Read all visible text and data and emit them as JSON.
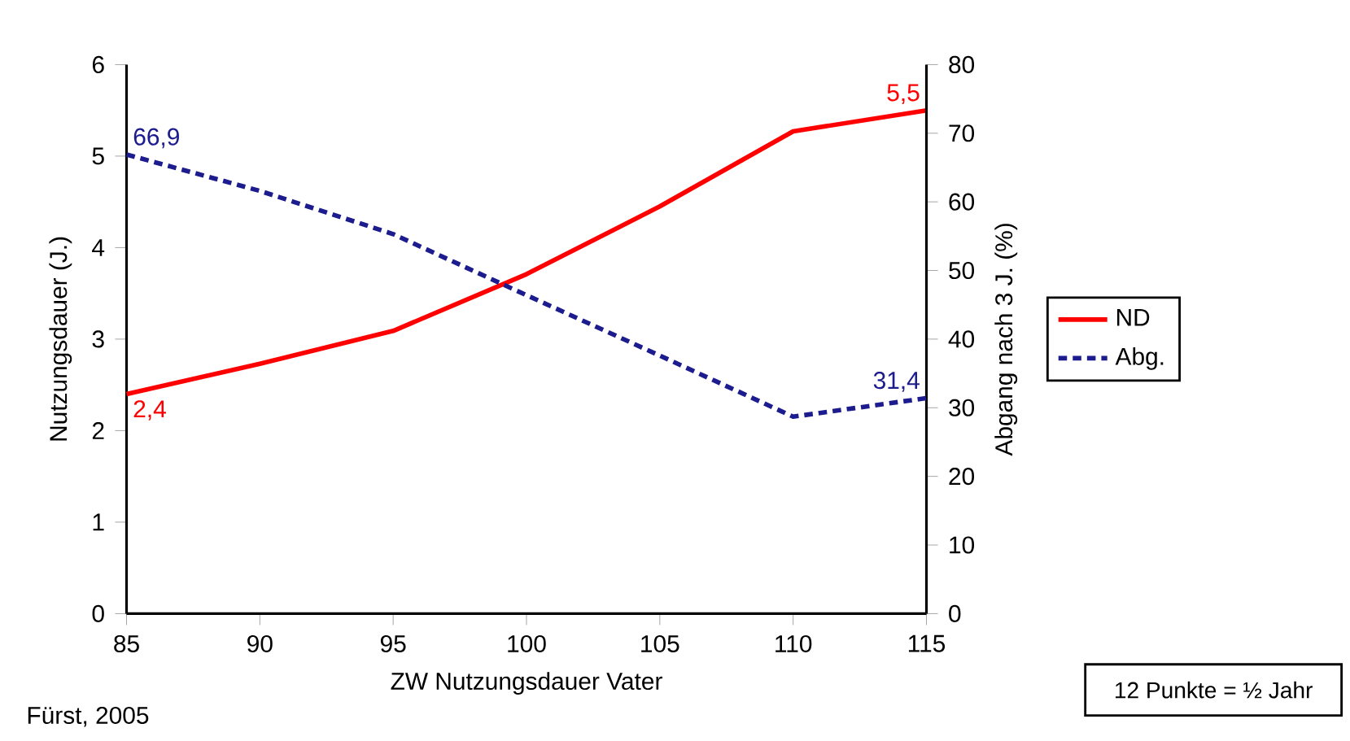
{
  "chart_data": {
    "type": "line",
    "xlabel": "ZW Nutzungsdauer Vater",
    "ylabel": "Nutzungsdauer (J.)",
    "y2label": "Abgang nach 3 J. (%)",
    "x": [
      85,
      90,
      95,
      100,
      105,
      110,
      115
    ],
    "xlim": [
      85,
      115
    ],
    "xticks": [
      85,
      90,
      95,
      100,
      105,
      110,
      115
    ],
    "ylim": [
      0,
      6
    ],
    "yticks": [
      0,
      1,
      2,
      3,
      4,
      5,
      6
    ],
    "y2lim": [
      0,
      80
    ],
    "y2ticks": [
      0,
      10,
      20,
      30,
      40,
      50,
      60,
      70,
      80
    ],
    "series": [
      {
        "name": "ND",
        "color": "#ff0000",
        "line_style": "solid",
        "values": [
          2.4,
          2.73,
          3.09,
          3.71,
          4.45,
          5.27,
          5.5
        ],
        "value_labels": [
          "2,4",
          null,
          null,
          null,
          null,
          null,
          "5,5"
        ]
      },
      {
        "name": "Abg.",
        "color": "#1c1c8f",
        "axis": "y2",
        "line_style": "dashed",
        "values": [
          66.9,
          61.6,
          55.3,
          46.4,
          37.6,
          28.7,
          31.4
        ],
        "value_labels": [
          "66,9",
          null,
          null,
          null,
          null,
          null,
          "31,4"
        ]
      }
    ],
    "legend": "right",
    "grid": false,
    "marker": "none",
    "annotations": [
      "Fürst, 2005",
      "12 Punkte = ½ Jahr"
    ]
  }
}
